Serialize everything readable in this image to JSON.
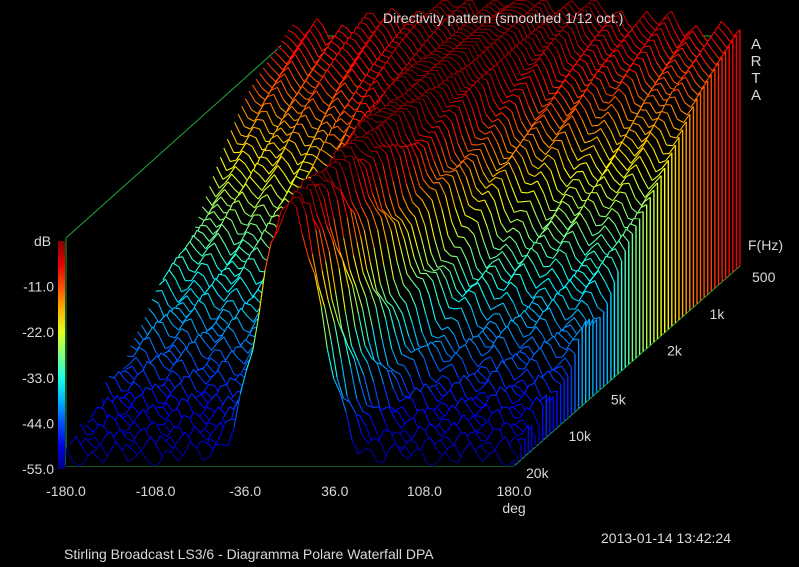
{
  "title": "Directivity pattern (smoothed 1/12 oct.)",
  "logo": "ARTA",
  "timestamp": "2013-01-14  13:42:24",
  "caption": "Stirling Broadcast LS3/6 - Diagramma Polare Waterfall     DPA",
  "chart_data": {
    "type": "waterfall-3d",
    "x_axis": {
      "label": "deg",
      "min": -180,
      "max": 180,
      "ticks": [
        "-180.0",
        "-108.0",
        "-36.0",
        "36.0",
        "108.0",
        "180.0"
      ]
    },
    "y_axis": {
      "label": "F(Hz)",
      "scale": "log",
      "min": 500,
      "max": 20000,
      "ticks": [
        "500",
        "1k",
        "2k",
        "5k",
        "10k",
        "20k"
      ]
    },
    "color_axis": {
      "label": "dB",
      "min": -55,
      "max": 0,
      "ticks": [
        "-11.0",
        "-22.0",
        "-33.0",
        "-44.0",
        "-55.0"
      ]
    },
    "model": {
      "frequencies_hz": [
        500,
        1000,
        2000,
        5000,
        10000,
        20000
      ],
      "beamwidth_deg": [
        150,
        120,
        95,
        65,
        48,
        38
      ],
      "rear_level_db": [
        -8,
        -14,
        -24,
        -38,
        -47,
        -53
      ]
    },
    "colors": {
      "background": "#000000",
      "grid": "#1fa83a",
      "axis_text": "#d8d8d8",
      "trace": "#ffffff"
    }
  }
}
